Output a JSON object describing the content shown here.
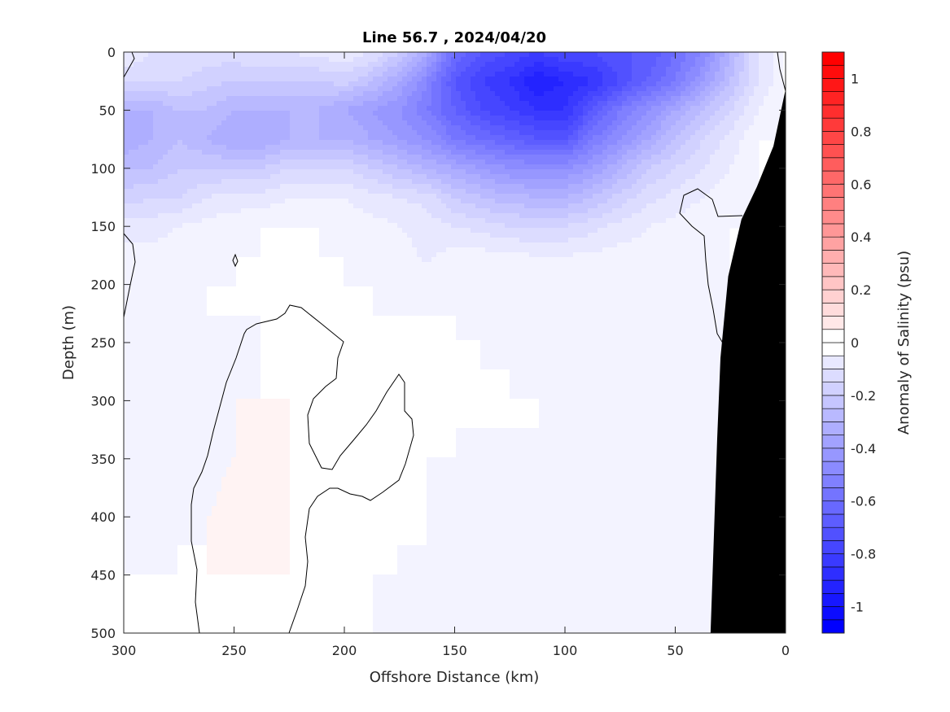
{
  "chart_data": {
    "type": "heatmap",
    "subtype": "filled-contour",
    "title": "Line 56.7 , 2024/04/20",
    "xlabel": "Offshore Distance (km)",
    "ylabel": "Depth (m)",
    "colorbar_label": "Anomaly of Salinity (psu)",
    "xlim": [
      300,
      0
    ],
    "ylim": [
      0,
      500
    ],
    "x_reversed": true,
    "y_reversed": true,
    "xticks": [
      300,
      250,
      200,
      150,
      100,
      50,
      0
    ],
    "xtick_labels": [
      "300",
      "250",
      "200",
      "150",
      "100",
      "50",
      "0"
    ],
    "yticks": [
      0,
      50,
      100,
      150,
      200,
      250,
      300,
      350,
      400,
      450,
      500
    ],
    "ytick_labels": [
      "0",
      "50",
      "100",
      "150",
      "200",
      "250",
      "300",
      "350",
      "400",
      "450",
      "500"
    ],
    "clim": [
      -1.1,
      1.1
    ],
    "contour_step": 0.05,
    "cticks": [
      -1,
      -0.8,
      -0.6,
      -0.4,
      -0.2,
      0,
      0.2,
      0.4,
      0.6,
      0.8,
      1
    ],
    "ctick_labels": [
      "-1",
      "-0.8",
      "-0.6",
      "-0.4",
      "-0.2",
      "0",
      "0.2",
      "0.4",
      "0.6",
      "0.8",
      "1"
    ],
    "colors": {
      "negative": "#0000ff",
      "zero": "#ffffff",
      "positive": "#ff0000",
      "bathymetry": "#000000",
      "zero_contour": "#000000"
    },
    "grid": false,
    "x": [
      300,
      287.5,
      275,
      262.5,
      250,
      237.5,
      225,
      212.5,
      200,
      187.5,
      175,
      162.5,
      150,
      137.5,
      125,
      112.5,
      100,
      87.5,
      75,
      62.5,
      50,
      37.5,
      25,
      12.5,
      0
    ],
    "depth": [
      0,
      25,
      50,
      75,
      100,
      125,
      150,
      175,
      200,
      225,
      250,
      275,
      300,
      325,
      350,
      375,
      400,
      425,
      450,
      475,
      500
    ],
    "z": [
      [
        -0.05,
        -0.1,
        -0.1,
        -0.12,
        -0.12,
        -0.1,
        -0.1,
        -0.08,
        -0.05,
        -0.1,
        -0.2,
        -0.35,
        -0.6,
        -0.7,
        -0.75,
        -0.8,
        -0.75,
        -0.75,
        -0.7,
        -0.7,
        -0.6,
        -0.5,
        -0.3,
        -0.1,
        0
      ],
      [
        -0.15,
        -0.15,
        -0.15,
        -0.18,
        -0.2,
        -0.2,
        -0.2,
        -0.2,
        -0.18,
        -0.25,
        -0.35,
        -0.5,
        -0.7,
        -0.8,
        -0.85,
        -0.95,
        -0.9,
        -0.85,
        -0.75,
        -0.65,
        -0.55,
        -0.4,
        -0.25,
        -0.1,
        0
      ],
      [
        -0.3,
        -0.3,
        -0.25,
        -0.25,
        -0.3,
        -0.3,
        -0.3,
        -0.3,
        -0.35,
        -0.4,
        -0.45,
        -0.55,
        -0.65,
        -0.75,
        -0.8,
        -0.85,
        -0.85,
        -0.7,
        -0.55,
        -0.45,
        -0.35,
        -0.25,
        -0.15,
        -0.05,
        0
      ],
      [
        -0.35,
        -0.3,
        -0.25,
        -0.3,
        -0.35,
        -0.35,
        -0.3,
        -0.3,
        -0.3,
        -0.35,
        -0.4,
        -0.45,
        -0.55,
        -0.6,
        -0.65,
        -0.7,
        -0.7,
        -0.55,
        -0.45,
        -0.35,
        -0.25,
        -0.15,
        -0.08,
        0,
        0
      ],
      [
        -0.25,
        -0.25,
        -0.2,
        -0.2,
        -0.2,
        -0.2,
        -0.15,
        -0.15,
        -0.15,
        -0.2,
        -0.25,
        -0.3,
        -0.35,
        -0.4,
        -0.45,
        -0.45,
        -0.45,
        -0.4,
        -0.3,
        -0.2,
        -0.15,
        -0.1,
        -0.05,
        0,
        0
      ],
      [
        -0.18,
        -0.15,
        -0.15,
        -0.1,
        -0.08,
        -0.08,
        -0.05,
        -0.05,
        -0.05,
        -0.08,
        -0.1,
        -0.12,
        -0.2,
        -0.25,
        -0.28,
        -0.3,
        -0.3,
        -0.25,
        -0.18,
        -0.12,
        -0.08,
        -0.05,
        -0.02,
        0,
        0
      ],
      [
        -0.08,
        -0.08,
        -0.05,
        -0.03,
        -0.02,
        0,
        0,
        0,
        -0.02,
        -0.03,
        -0.05,
        -0.07,
        -0.1,
        -0.12,
        -0.15,
        -0.15,
        -0.15,
        -0.12,
        -0.08,
        -0.05,
        -0.03,
        -0.02,
        0,
        0,
        0
      ],
      [
        -0.03,
        -0.03,
        -0.02,
        -0.01,
        0,
        0,
        0,
        0,
        0,
        -0.01,
        -0.03,
        -0.06,
        -0.03,
        -0.03,
        -0.04,
        -0.05,
        -0.05,
        -0.04,
        -0.03,
        -0.03,
        -0.03,
        -0.02,
        0,
        0,
        0
      ],
      [
        -0.02,
        -0.02,
        -0.01,
        0,
        0,
        0,
        0,
        0,
        0,
        0,
        -0.01,
        -0.02,
        -0.01,
        -0.02,
        -0.02,
        -0.03,
        -0.03,
        -0.03,
        -0.02,
        -0.03,
        -0.03,
        -0.02,
        0,
        0,
        0
      ],
      [
        -0.02,
        -0.02,
        -0.01,
        0,
        0,
        0,
        0,
        0,
        0,
        0,
        0,
        0,
        0,
        -0.01,
        -0.02,
        -0.02,
        -0.03,
        -0.02,
        -0.02,
        -0.03,
        -0.03,
        -0.02,
        0,
        0,
        0
      ],
      [
        -0.03,
        -0.03,
        -0.03,
        -0.03,
        -0.01,
        0,
        0,
        0,
        0,
        0,
        0,
        0,
        0,
        0,
        -0.01,
        -0.02,
        -0.03,
        -0.03,
        -0.02,
        -0.03,
        -0.03,
        -0.02,
        0,
        0,
        0
      ],
      [
        -0.03,
        -0.03,
        -0.03,
        -0.03,
        -0.01,
        0,
        0,
        0,
        0,
        0,
        0,
        0,
        0,
        0,
        0,
        -0.01,
        -0.02,
        -0.03,
        -0.02,
        -0.03,
        -0.03,
        -0.02,
        0,
        0,
        0
      ],
      [
        -0.03,
        -0.03,
        -0.03,
        -0.02,
        0,
        0,
        0,
        0,
        0,
        0,
        0,
        0,
        0,
        0,
        0,
        0,
        -0.01,
        -0.03,
        -0.02,
        -0.03,
        -0.03,
        -0.02,
        0,
        0,
        0
      ],
      [
        -0.02,
        -0.03,
        -0.03,
        -0.02,
        0,
        0.005,
        0,
        0,
        0,
        0,
        0,
        0,
        0,
        0,
        0,
        0,
        -0.01,
        -0.03,
        -0.02,
        -0.03,
        -0.03,
        -0.02,
        0,
        0,
        0
      ],
      [
        -0.02,
        -0.03,
        -0.03,
        -0.01,
        0,
        0.01,
        0,
        0,
        0,
        0,
        0,
        0,
        0,
        -0.01,
        -0.02,
        -0.01,
        -0.01,
        -0.03,
        -0.02,
        -0.03,
        -0.03,
        -0.02,
        0,
        0,
        0
      ],
      [
        -0.03,
        -0.03,
        -0.02,
        -0.01,
        0.01,
        0.02,
        0,
        0,
        0,
        0,
        0,
        0,
        -0.01,
        -0.03,
        -0.03,
        -0.03,
        -0.02,
        -0.03,
        -0.03,
        -0.03,
        -0.03,
        -0.02,
        0,
        0,
        0
      ],
      [
        -0.03,
        -0.02,
        -0.01,
        0,
        0.01,
        0.02,
        0,
        0,
        0,
        0,
        0,
        0,
        -0.02,
        -0.03,
        -0.03,
        -0.03,
        -0.01,
        -0.03,
        -0.03,
        -0.03,
        -0.03,
        -0.02,
        0,
        0,
        0
      ],
      [
        -0.01,
        -0.01,
        0,
        0,
        0.01,
        0.01,
        0,
        0,
        0,
        0,
        0,
        0,
        -0.02,
        -0.03,
        -0.03,
        -0.03,
        -0.01,
        -0.02,
        -0.03,
        -0.03,
        -0.03,
        -0.02,
        0,
        0,
        0
      ],
      [
        0,
        0,
        0,
        0,
        0,
        0,
        0,
        0,
        0,
        0,
        0,
        -0.01,
        -0.02,
        -0.03,
        -0.03,
        -0.03,
        -0.02,
        -0.02,
        -0.03,
        -0.03,
        -0.03,
        -0.02,
        0,
        0,
        0
      ],
      [
        0,
        0,
        0,
        0,
        0,
        0,
        0,
        0,
        0,
        0,
        -0.01,
        -0.02,
        -0.02,
        -0.03,
        -0.02,
        -0.02,
        -0.02,
        -0.02,
        -0.03,
        -0.03,
        -0.03,
        -0.02,
        0,
        0,
        0
      ],
      [
        0,
        0,
        0,
        0,
        0,
        0,
        0,
        0,
        0,
        0,
        -0.02,
        -0.03,
        -0.02,
        -0.01,
        0,
        0,
        0,
        -0.02,
        -0.03,
        -0.03,
        -0.03,
        -0.02,
        0,
        0,
        0
      ]
    ],
    "bathymetry": {
      "distance_km": [
        0,
        5.5,
        13,
        20,
        26,
        29.5,
        31,
        33,
        34
      ],
      "depth_m": [
        32,
        81,
        116,
        144,
        193,
        263,
        333,
        445,
        500
      ]
    }
  }
}
